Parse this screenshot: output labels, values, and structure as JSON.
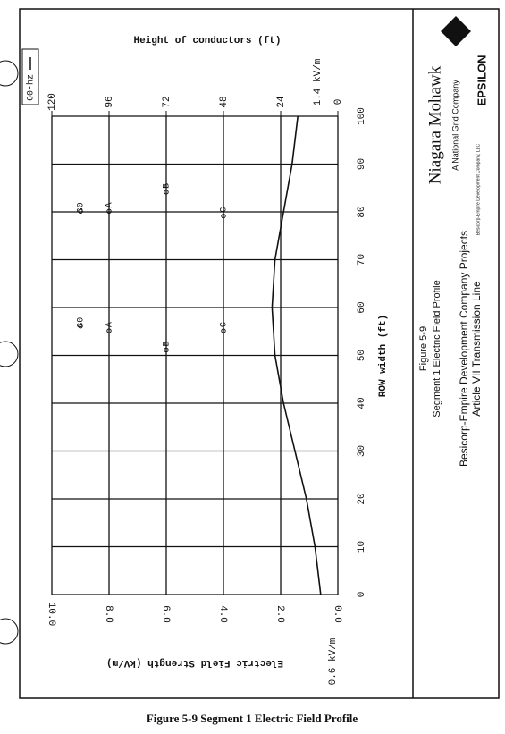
{
  "chart_data": {
    "type": "line",
    "title": "Height of conductors (ft)",
    "x_label": "ROW width (ft)",
    "y_label": "Electric Field Strength (kV/m)",
    "x": [
      0,
      10,
      20,
      30,
      40,
      50,
      60,
      70,
      80,
      90,
      100
    ],
    "series": [
      {
        "name": "60-hz",
        "color": "#111111",
        "values": [
          0.6,
          0.8,
          1.1,
          1.5,
          1.9,
          2.2,
          2.3,
          2.2,
          1.9,
          1.6,
          1.4
        ]
      }
    ],
    "xlim": [
      0,
      100
    ],
    "xticks": [
      0,
      10,
      20,
      30,
      40,
      50,
      60,
      70,
      80,
      90,
      100
    ],
    "ylim": [
      0,
      10
    ],
    "yticks": [
      {
        "value": 0,
        "label": "0.0"
      },
      {
        "value": 2,
        "label": "2.0"
      },
      {
        "value": 4,
        "label": "4.0"
      },
      {
        "value": 6,
        "label": "6.0"
      },
      {
        "value": 8,
        "label": "8.0"
      },
      {
        "value": 10,
        "label": "10.0"
      }
    ],
    "y2lim": [
      0,
      120
    ],
    "y2ticks": [
      0,
      24,
      48,
      72,
      96,
      120
    ],
    "annotations": [
      "0.6 kV/m",
      "1.4 kV/m"
    ],
    "conductors": [
      {
        "label": "G0",
        "x": 58,
        "height": 108
      },
      {
        "label": "A",
        "x": 57,
        "height": 96
      },
      {
        "label": "B",
        "x": 53,
        "height": 72
      },
      {
        "label": "C",
        "x": 57,
        "height": 48
      },
      {
        "label": "G0",
        "x": 82,
        "height": 108
      },
      {
        "label": "A",
        "x": 82,
        "height": 96
      },
      {
        "label": "B",
        "x": 86,
        "height": 72
      },
      {
        "label": "C",
        "x": 81,
        "height": 48
      }
    ],
    "grid": true
  },
  "title_block": {
    "company": "Niagara Mohawk",
    "company_sub": "A National Grid Company",
    "consultant": "EPSILON",
    "figure": "Figure 5-9",
    "figure_title": "Segment 1 Electric Field Profile",
    "project": "Besicorp-Empire Development Company Projects",
    "project_sub": "Article VII Transmission Line",
    "client": "Besicorp-Empire Development Company, LLC"
  },
  "caption": "Figure 5-9 Segment 1 Electric Field Profile"
}
